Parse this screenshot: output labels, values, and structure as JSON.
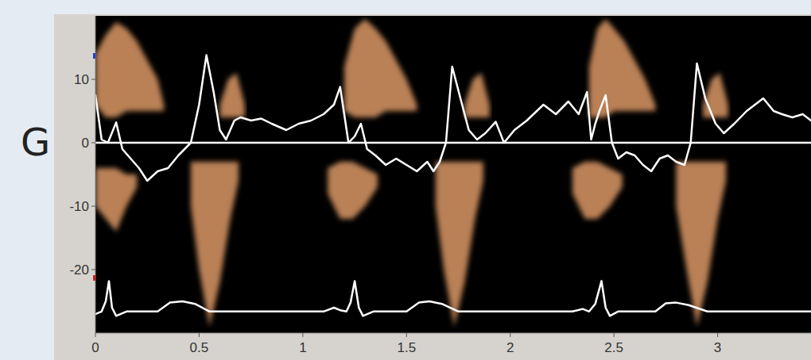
{
  "chart_data": {
    "type": "line",
    "title": "G",
    "xlim": [
      0,
      3.45
    ],
    "xticks": [
      0,
      0.5,
      1,
      1.5,
      2,
      2.5,
      3
    ],
    "ylim": [
      -30,
      20
    ],
    "yticks": [
      -20,
      -10,
      0,
      10
    ],
    "reference_line": 0,
    "series": [
      {
        "type": "area",
        "color": "#e8a06a",
        "x": [
          0,
          0.05,
          0.1,
          0.15,
          0.2,
          0.25,
          0.3,
          0.33
        ],
        "low": [
          6,
          4,
          4,
          5,
          5,
          5,
          5,
          5
        ],
        "values": [
          14,
          17,
          19,
          18,
          16,
          13,
          10,
          6
        ]
      },
      {
        "type": "area",
        "color": "#e8a06a",
        "x": [
          0.6,
          0.64,
          0.68,
          0.72
        ],
        "low": [
          4,
          4,
          4,
          4
        ],
        "values": [
          6,
          10,
          11,
          6
        ]
      },
      {
        "type": "area",
        "color": "#e8a06a",
        "x": [
          1.2,
          1.25,
          1.3,
          1.35,
          1.4,
          1.45,
          1.5,
          1.55
        ],
        "low": [
          5,
          4,
          4,
          4,
          5,
          5,
          5,
          5
        ],
        "values": [
          12,
          18,
          19.5,
          18,
          16,
          13,
          10,
          6
        ]
      },
      {
        "type": "area",
        "color": "#e8a06a",
        "x": [
          1.78,
          1.82,
          1.86,
          1.9
        ],
        "low": [
          4,
          4,
          4,
          4
        ],
        "values": [
          6,
          10,
          11,
          6
        ]
      },
      {
        "type": "area",
        "color": "#e8a06a",
        "x": [
          2.38,
          2.42,
          2.46,
          2.5,
          2.55,
          2.6,
          2.65,
          2.7
        ],
        "low": [
          4,
          4,
          4,
          5,
          5,
          5,
          5,
          5
        ],
        "values": [
          12,
          18,
          19.5,
          18,
          16,
          13,
          10,
          6
        ]
      },
      {
        "type": "area",
        "color": "#e8a06a",
        "x": [
          2.93,
          2.97,
          3.01,
          3.05
        ],
        "low": [
          4,
          4,
          4,
          4
        ],
        "values": [
          6,
          10,
          11,
          6
        ]
      },
      {
        "type": "area",
        "color": "#e8a06a",
        "x": [
          0,
          0.05,
          0.1,
          0.15,
          0.2
        ],
        "low": [
          -10,
          -12,
          -14,
          -10,
          -7
        ],
        "values": [
          -4,
          -4,
          -4,
          -5,
          -5
        ]
      },
      {
        "type": "area",
        "color": "#e8a06a",
        "x": [
          0.46,
          0.5,
          0.55,
          0.6,
          0.65,
          0.69
        ],
        "low": [
          -10,
          -20,
          -29,
          -22,
          -12,
          -6
        ],
        "values": [
          -3,
          -3,
          -3,
          -3,
          -3,
          -3
        ]
      },
      {
        "type": "area",
        "color": "#e8a06a",
        "x": [
          1.12,
          1.18,
          1.24,
          1.3,
          1.36
        ],
        "low": [
          -8,
          -12,
          -12,
          -10,
          -7
        ],
        "values": [
          -4,
          -3,
          -3,
          -4,
          -5
        ]
      },
      {
        "type": "area",
        "color": "#e8a06a",
        "x": [
          1.64,
          1.68,
          1.73,
          1.78,
          1.83,
          1.87
        ],
        "low": [
          -10,
          -20,
          -29,
          -22,
          -12,
          -6
        ],
        "values": [
          -3,
          -3,
          -3,
          -3,
          -3,
          -3
        ]
      },
      {
        "type": "area",
        "color": "#e8a06a",
        "x": [
          2.3,
          2.36,
          2.42,
          2.48,
          2.54
        ],
        "low": [
          -8,
          -12,
          -12,
          -10,
          -7
        ],
        "values": [
          -4,
          -3,
          -3,
          -4,
          -5
        ]
      },
      {
        "type": "area",
        "color": "#e8a06a",
        "x": [
          2.8,
          2.85,
          2.9,
          2.95,
          3.0,
          3.04
        ],
        "low": [
          -10,
          -20,
          -29,
          -22,
          -12,
          -6
        ],
        "values": [
          -3,
          -3,
          -3,
          -3,
          -3,
          -3
        ]
      },
      {
        "type": "line",
        "color": "#ffffff",
        "x": [
          0,
          0.03,
          0.06,
          0.1,
          0.13,
          0.17,
          0.21,
          0.25,
          0.3,
          0.35,
          0.4,
          0.46,
          0.5,
          0.535,
          0.57,
          0.6,
          0.63,
          0.67,
          0.7,
          0.75,
          0.8,
          0.85,
          0.92,
          0.98,
          1.04,
          1.1,
          1.15,
          1.18,
          1.22,
          1.25,
          1.28,
          1.31,
          1.35,
          1.4,
          1.45,
          1.5,
          1.55,
          1.6,
          1.63,
          1.66,
          1.69,
          1.72,
          1.76,
          1.8,
          1.84,
          1.88,
          1.93,
          1.97,
          2.02,
          2.08,
          2.16,
          2.22,
          2.28,
          2.33,
          2.37,
          2.39,
          2.41,
          2.43,
          2.46,
          2.49,
          2.52,
          2.56,
          2.6,
          2.64,
          2.68,
          2.72,
          2.76,
          2.8,
          2.84,
          2.87,
          2.9,
          2.94,
          2.99,
          3.03,
          3.08,
          3.14,
          3.22,
          3.27,
          3.31,
          3.36,
          3.41,
          3.45
        ],
        "values": [
          7.5,
          0.5,
          0,
          3.2,
          -1,
          -2.5,
          -4,
          -6,
          -4.5,
          -4,
          -2,
          0,
          6,
          13.8,
          8,
          2,
          0.5,
          3.5,
          4,
          3.5,
          3.8,
          3,
          2,
          3,
          3.5,
          4.5,
          6,
          8.8,
          0,
          1,
          3,
          -1,
          -2,
          -3.5,
          -2.5,
          -3.5,
          -4.5,
          -3,
          -4.5,
          -3,
          0,
          12,
          7,
          2,
          0.5,
          1.5,
          3.3,
          0,
          2,
          3.5,
          6,
          4.5,
          6.5,
          4.5,
          8,
          0.5,
          3,
          5,
          7.5,
          0,
          -2.5,
          -1.5,
          -2,
          -3.5,
          -4.5,
          -2.5,
          -2,
          -3,
          -3.5,
          0,
          12.5,
          7,
          3,
          1.5,
          3,
          5,
          7,
          5,
          4.5,
          4,
          4.5,
          3.5
        ]
      },
      {
        "type": "line",
        "color": "#ffffff",
        "x": [
          0,
          0.03,
          0.05,
          0.065,
          0.08,
          0.1,
          0.15,
          0.3,
          0.36,
          0.42,
          0.48,
          0.55,
          0.8,
          1.1,
          1.15,
          1.18,
          1.21,
          1.23,
          1.25,
          1.27,
          1.29,
          1.34,
          1.5,
          1.56,
          1.61,
          1.67,
          1.75,
          2.0,
          2.3,
          2.35,
          2.38,
          2.41,
          2.44,
          2.46,
          2.48,
          2.52,
          2.7,
          2.75,
          2.8,
          2.86,
          2.95,
          3.2,
          3.45
        ],
        "values": [
          -27,
          -26.6,
          -25,
          -21.8,
          -26,
          -27.3,
          -26.6,
          -26.6,
          -25.2,
          -25,
          -25.4,
          -26.6,
          -26.6,
          -26.6,
          -26,
          -26.4,
          -26.6,
          -25.2,
          -21.8,
          -26,
          -27.3,
          -26.6,
          -26.6,
          -25.2,
          -25,
          -25.4,
          -26.6,
          -26.6,
          -26.6,
          -26.2,
          -26.6,
          -25.4,
          -21.8,
          -26,
          -27.3,
          -26.6,
          -26.6,
          -25.3,
          -25.2,
          -25.6,
          -26.6,
          -26.6,
          -26.6
        ]
      }
    ]
  }
}
